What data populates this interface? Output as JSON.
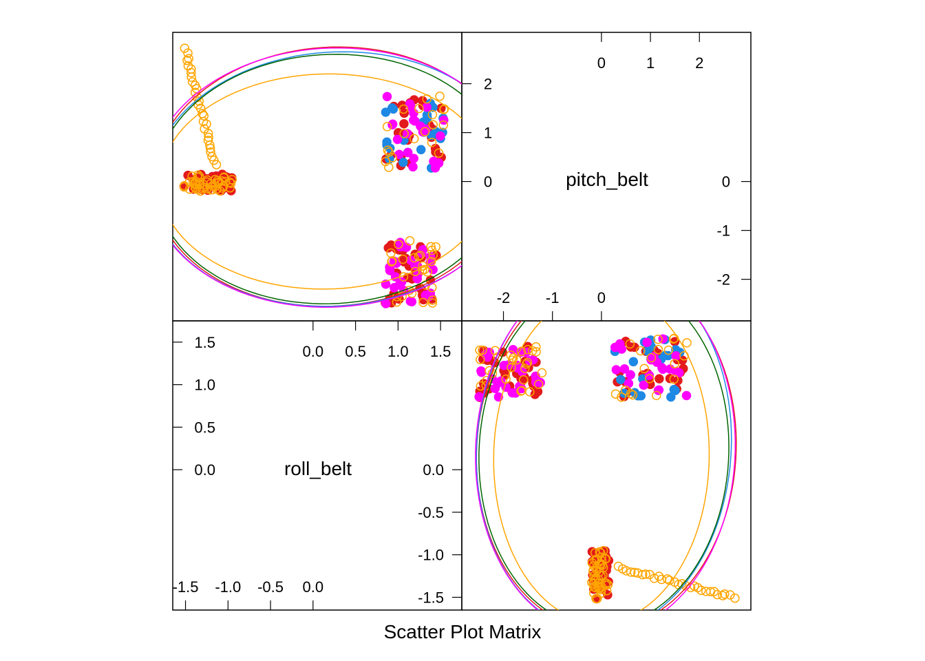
{
  "chart_data": {
    "type": "scatter",
    "title": "Scatter Plot Matrix",
    "variables": [
      "roll_belt",
      "pitch_belt"
    ],
    "series": [
      {
        "name": "",
        "color": "#E31A1C",
        "hollow": false
      },
      {
        "name": "",
        "color": "#1E88E5",
        "hollow": false
      },
      {
        "name": "",
        "color": "#FF00FF",
        "hollow": false
      },
      {
        "name": "",
        "color": "#006400",
        "hollow": false
      },
      {
        "name": "",
        "color": "#FFA500",
        "hollow": true
      }
    ],
    "roll_belt": {
      "lim": [
        -1.65,
        1.75
      ],
      "ticks": [
        -1.5,
        -1.0,
        -0.5,
        0.0,
        0.5,
        1.0,
        1.5
      ],
      "tick_labels": [
        "-1.5",
        "-1.0",
        "-0.5",
        "0.0",
        "0.5",
        "1.0",
        "1.5"
      ],
      "neg_labels": [
        "-1.5",
        "-1.0",
        "-0.5",
        "0.0"
      ],
      "pos_labels": [
        "0.0",
        "0.5",
        "1.0",
        "1.5"
      ]
    },
    "pitch_belt": {
      "lim": [
        -2.85,
        3.05
      ],
      "ticks": [
        -2,
        -1,
        0,
        1,
        2
      ],
      "tick_labels": [
        "-2",
        "-1",
        "0",
        "1",
        "2"
      ],
      "neg_labels": [
        "-2",
        "-1",
        "0"
      ],
      "pos_labels": [
        "0",
        "1",
        "2"
      ]
    },
    "clusters": [
      {
        "roll": [
          -1.52,
          -0.95
        ],
        "pitch": [
          -0.2,
          0.15
        ],
        "series": [
          0,
          4
        ]
      },
      {
        "roll": [
          0.85,
          1.55
        ],
        "pitch": [
          0.25,
          1.8
        ],
        "series": [
          0,
          1,
          2,
          4
        ]
      },
      {
        "roll": [
          0.85,
          1.45
        ],
        "pitch": [
          -2.5,
          -1.2
        ],
        "series": [
          0,
          2,
          4
        ]
      },
      {
        "roll": [
          -1.55,
          -1.0
        ],
        "pitch": [
          0.35,
          2.7
        ],
        "series": [
          4
        ]
      }
    ]
  }
}
